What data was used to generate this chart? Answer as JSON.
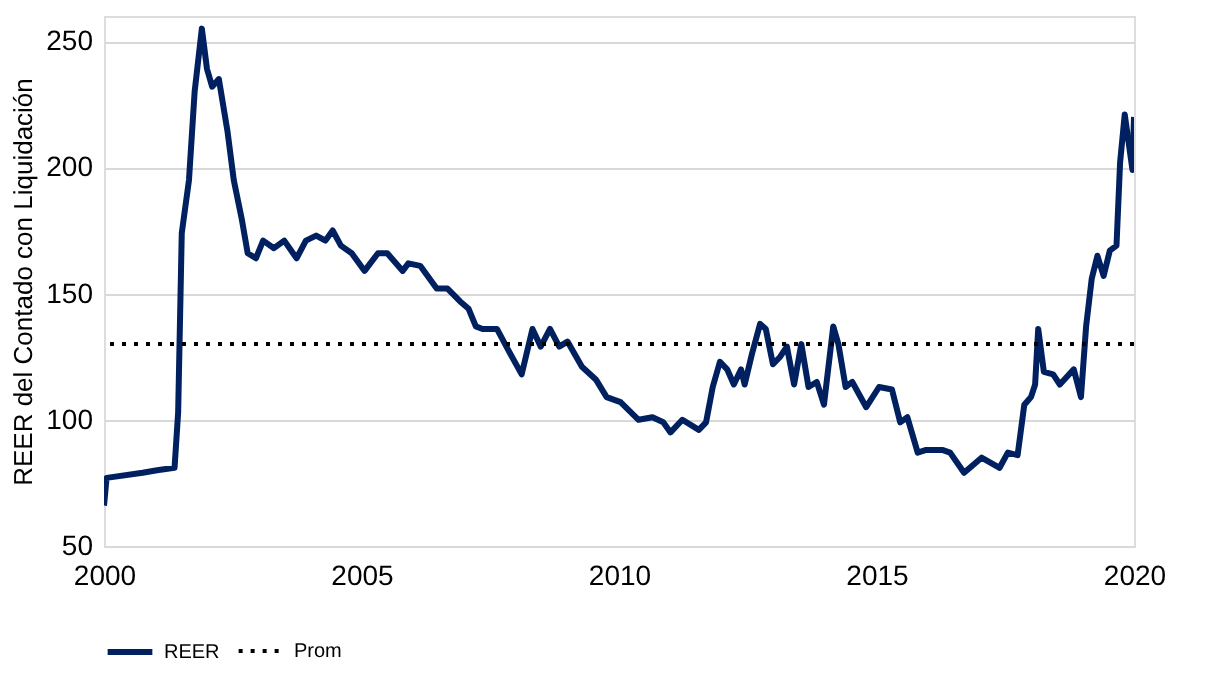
{
  "chart_data": {
    "type": "line",
    "ylabel": "REER del Contado con Liquidación",
    "x": [
      2000.0,
      2000.05,
      2000.75,
      2001.03,
      2001.37,
      2001.44,
      2001.51,
      2001.65,
      2001.76,
      2001.9,
      2002.0,
      2002.1,
      2002.23,
      2002.4,
      2002.52,
      2002.68,
      2002.79,
      2002.95,
      2003.09,
      2003.3,
      2003.5,
      2003.74,
      2003.92,
      2004.12,
      2004.3,
      2004.44,
      2004.6,
      2004.81,
      2005.06,
      2005.32,
      2005.5,
      2005.8,
      2005.91,
      2006.14,
      2006.46,
      2006.67,
      2006.91,
      2007.08,
      2007.22,
      2007.35,
      2007.63,
      2007.84,
      2008.11,
      2008.32,
      2008.48,
      2008.66,
      2008.84,
      2009.0,
      2009.28,
      2009.55,
      2009.76,
      2010.03,
      2010.38,
      2010.65,
      2010.86,
      2011.0,
      2011.23,
      2011.55,
      2011.69,
      2011.82,
      2011.96,
      2012.1,
      2012.23,
      2012.37,
      2012.44,
      2012.58,
      2012.74,
      2012.85,
      2012.99,
      2013.13,
      2013.26,
      2013.4,
      2013.54,
      2013.68,
      2013.84,
      2013.98,
      2014.16,
      2014.26,
      2014.4,
      2014.53,
      2014.8,
      2015.05,
      2015.3,
      2015.46,
      2015.6,
      2015.8,
      2015.95,
      2016.29,
      2016.43,
      2016.7,
      2017.04,
      2017.39,
      2017.55,
      2017.74,
      2017.87,
      2018.0,
      2018.08,
      2018.14,
      2018.25,
      2018.43,
      2018.56,
      2018.83,
      2018.97,
      2019.07,
      2019.18,
      2019.29,
      2019.41,
      2019.53,
      2019.66,
      2019.73,
      2019.82,
      2019.97,
      2020.0
    ],
    "series": [
      {
        "name": "REER",
        "color": "#002060",
        "values": [
          66,
          77,
          79,
          80,
          81,
          103,
          174,
          195,
          230,
          255,
          239,
          232,
          235,
          214,
          195,
          179,
          166,
          164,
          171,
          168,
          171,
          164,
          171,
          173,
          171,
          175,
          169,
          166,
          159,
          166,
          166,
          159,
          162,
          161,
          152,
          152,
          147,
          144,
          137,
          136,
          136,
          128,
          118,
          136,
          129,
          136,
          129,
          131,
          121,
          116,
          109,
          107,
          100,
          101,
          99,
          95,
          100,
          96,
          99,
          113,
          123,
          120,
          114,
          120,
          114,
          126,
          138,
          136,
          122,
          125,
          129,
          114,
          130,
          113,
          115,
          106,
          137,
          130,
          113,
          115,
          105,
          113,
          112,
          99,
          101,
          87,
          88,
          88,
          87,
          79,
          85,
          81,
          87,
          86,
          106,
          109,
          114,
          136,
          119,
          118,
          114,
          120,
          109,
          137,
          156,
          165,
          157,
          167,
          169,
          202,
          221,
          199,
          220
        ]
      }
    ],
    "xlim": [
      2000,
      2020
    ],
    "xticks": [
      2000,
      2005,
      2010,
      2015,
      2020
    ],
    "ylim": [
      50,
      260
    ],
    "yticks": [
      50,
      100,
      150,
      200,
      250
    ],
    "grid": "y",
    "legend": "bottom",
    "line_style": "solid",
    "ref_lines": [
      {
        "axis": "y",
        "value": 130,
        "label": "Prom",
        "color": "#000000",
        "line_style": "dotted"
      }
    ]
  }
}
